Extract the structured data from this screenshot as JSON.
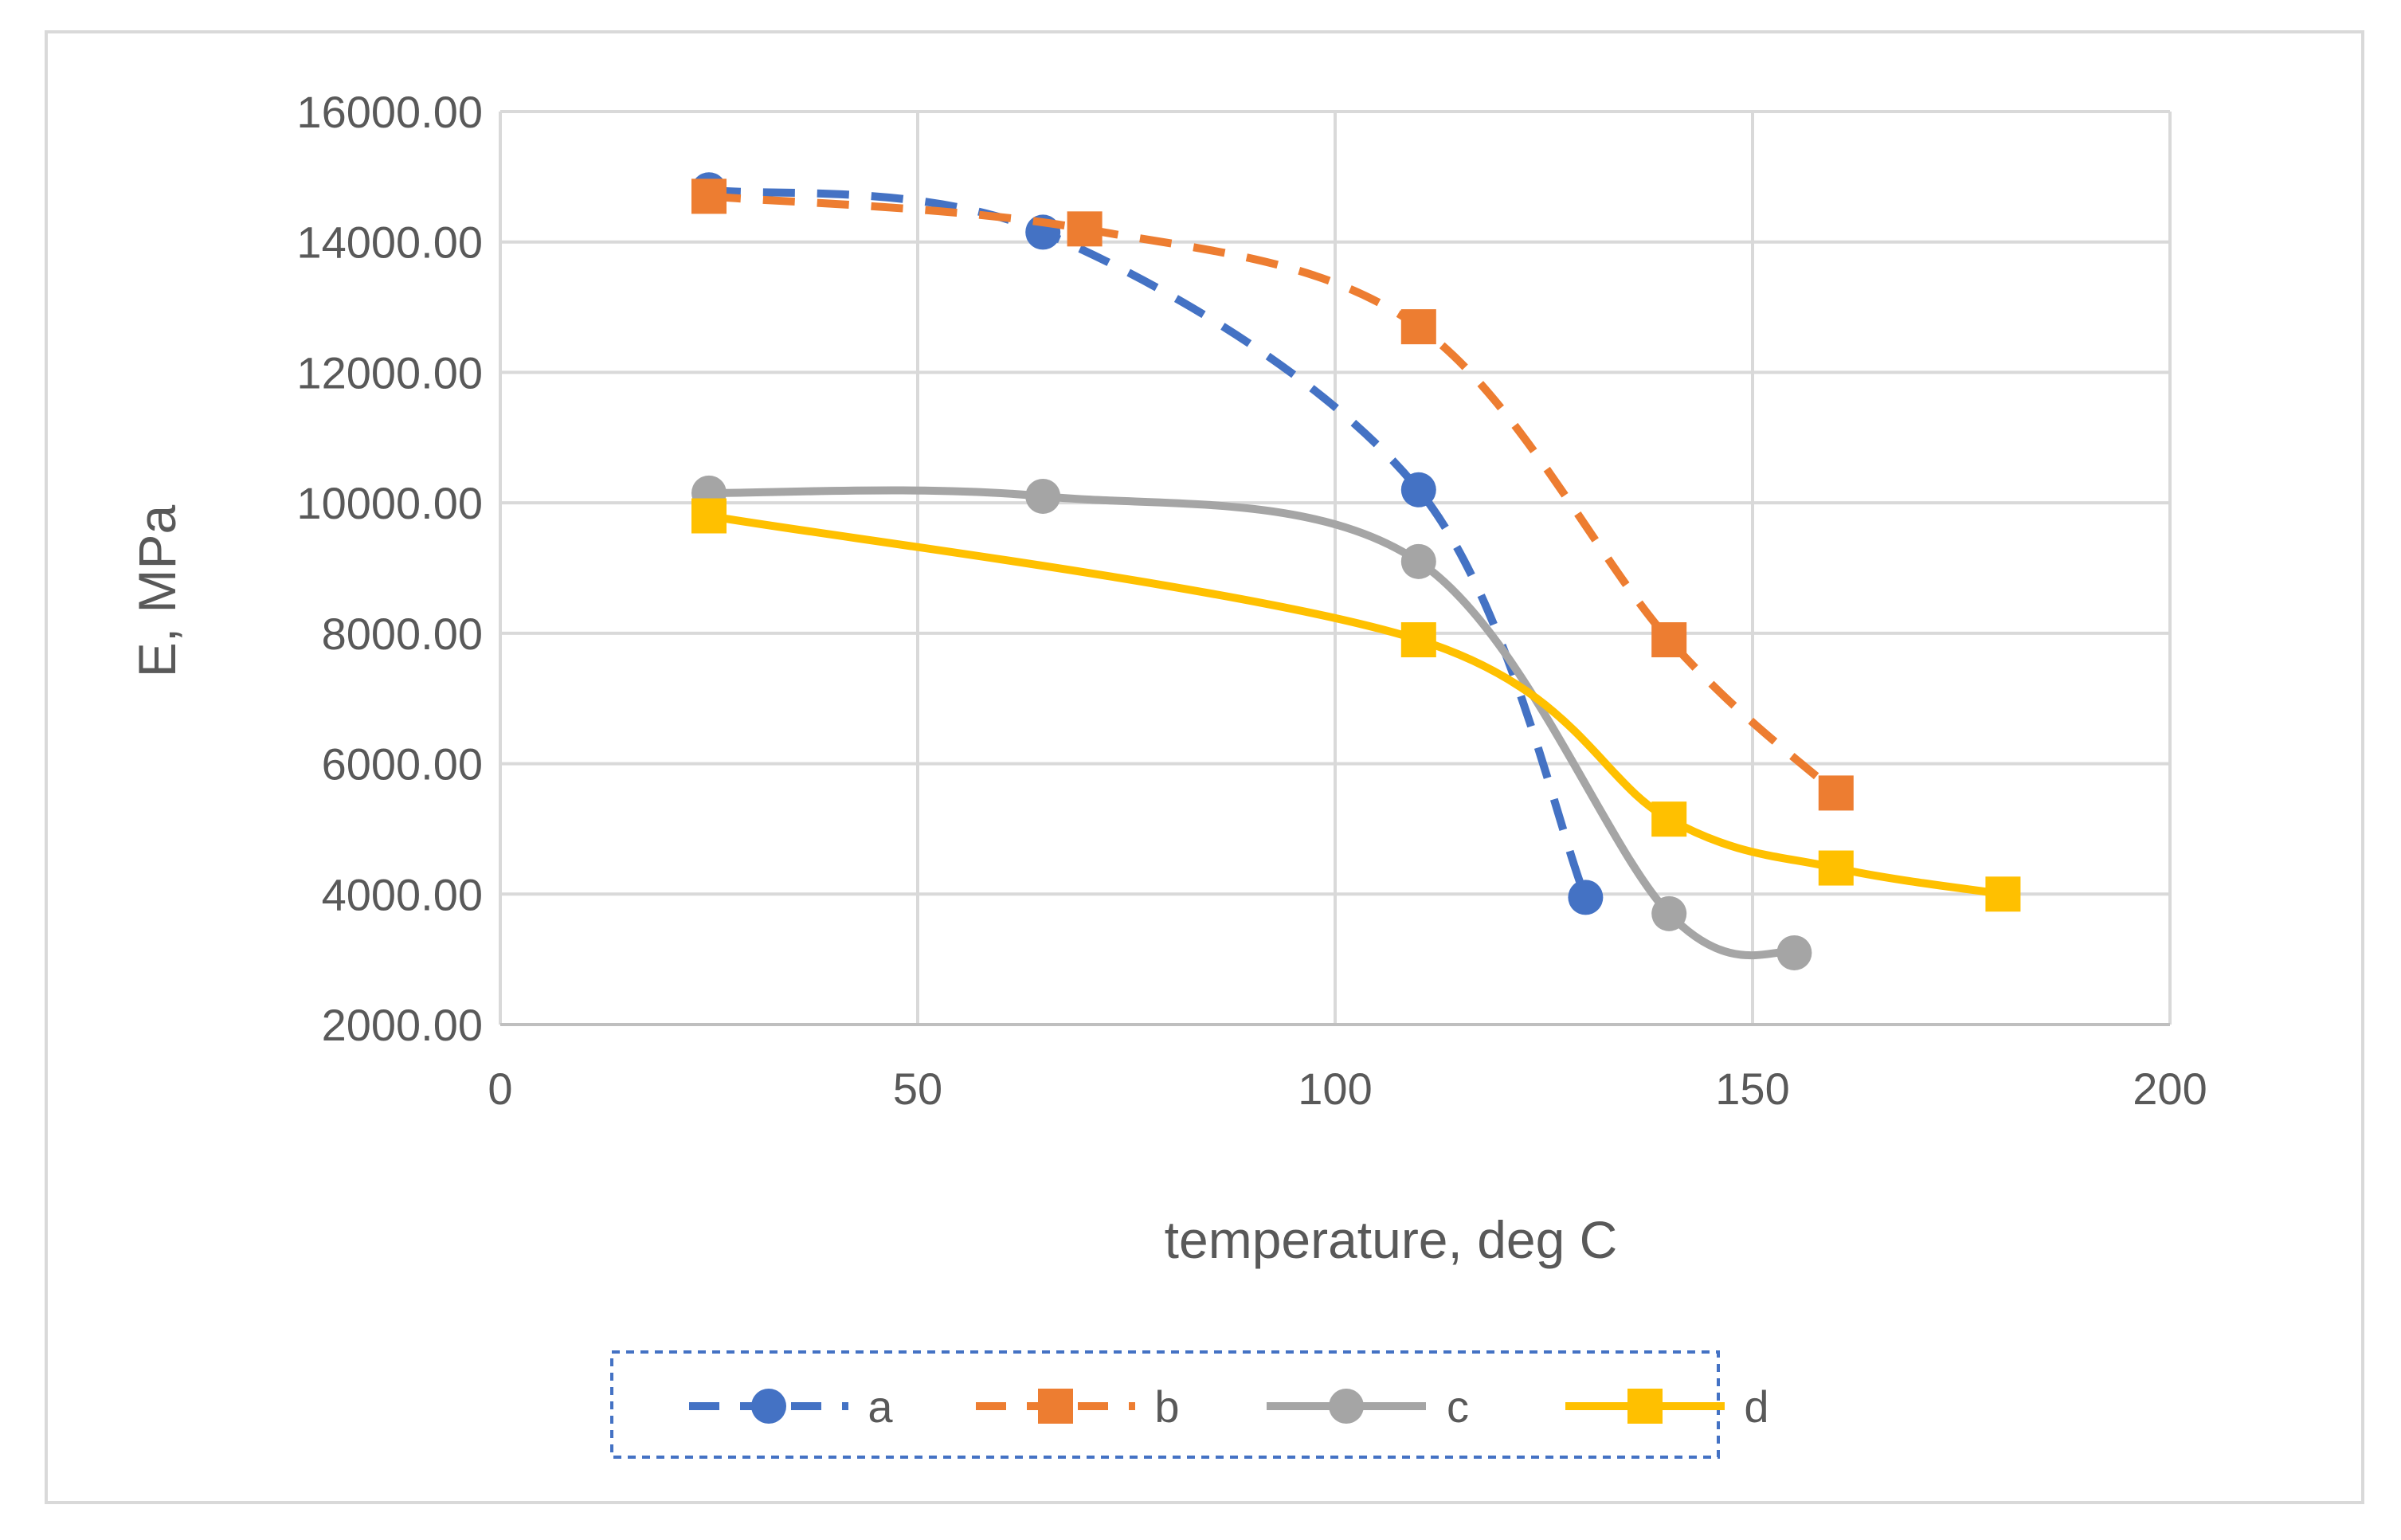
{
  "chart_data": {
    "type": "line",
    "title": "",
    "xlabel": "temperature, deg C",
    "ylabel": "E, MPa",
    "xlim": [
      0,
      200
    ],
    "ylim": [
      2000,
      16000
    ],
    "xticks": [
      0,
      50,
      100,
      150,
      200
    ],
    "yticks": [
      2000,
      4000,
      6000,
      8000,
      10000,
      12000,
      14000,
      16000
    ],
    "x_tick_labels": [
      "0",
      "50",
      "100",
      "150",
      "200"
    ],
    "y_tick_labels": [
      "2000.00",
      "4000.00",
      "6000.00",
      "8000.00",
      "10000.00",
      "12000.00",
      "14000.00",
      "16000.00"
    ],
    "grid": true,
    "legend_position": "bottom",
    "series": [
      {
        "name": "a",
        "color": "#4472C4",
        "dash": "dashed",
        "marker": "circle",
        "x": [
          25,
          65,
          110,
          130
        ],
        "y": [
          14800,
          14150,
          10200,
          3950
        ]
      },
      {
        "name": "b",
        "color": "#ED7D31",
        "dash": "dashed",
        "marker": "square",
        "x": [
          25,
          70,
          110,
          140,
          160
        ],
        "y": [
          14700,
          14200,
          12700,
          7900,
          5550
        ]
      },
      {
        "name": "c",
        "color": "#A5A5A5",
        "dash": "solid",
        "marker": "circle",
        "x": [
          25,
          65,
          110,
          140,
          155
        ],
        "y": [
          10150,
          10100,
          9100,
          3700,
          3100
        ]
      },
      {
        "name": "d",
        "color": "#FFC000",
        "dash": "solid",
        "marker": "square",
        "x": [
          25,
          110,
          140,
          160,
          180
        ],
        "y": [
          9800,
          7900,
          5150,
          4400,
          4000
        ]
      }
    ]
  }
}
